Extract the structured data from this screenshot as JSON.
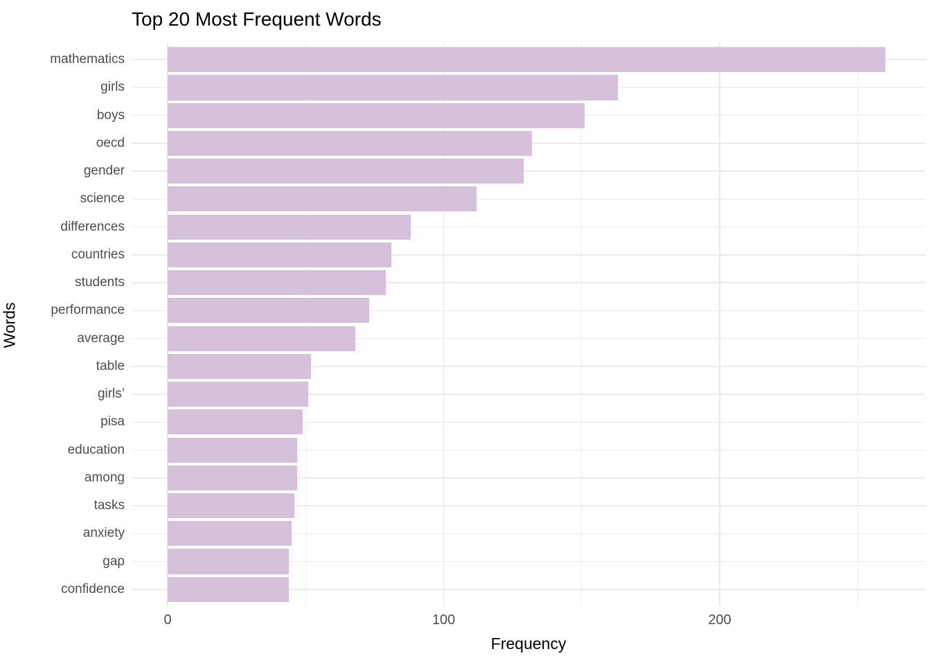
{
  "title": "Top 20 Most Frequent Words",
  "chart_data": {
    "type": "bar",
    "orientation": "horizontal",
    "title": "Top 20 Most Frequent Words",
    "xlabel": "Frequency",
    "ylabel": "Words",
    "categories": [
      "mathematics",
      "girls",
      "boys",
      "oecd",
      "gender",
      "science",
      "differences",
      "countries",
      "students",
      "performance",
      "average",
      "table",
      "girls’",
      "pisa",
      "education",
      "among",
      "tasks",
      "anxiety",
      "gap",
      "confidence"
    ],
    "values": [
      260,
      163,
      151,
      132,
      129,
      112,
      88,
      81,
      79,
      73,
      68,
      52,
      51,
      49,
      47,
      47,
      46,
      45,
      44,
      44
    ],
    "xlim": [
      0,
      274
    ],
    "xticks": [
      0,
      100,
      200
    ],
    "minor_xticks": [
      50,
      150,
      250
    ],
    "grid": true,
    "legend": "none",
    "bar_color": "#d6c1da",
    "major_grid_color": "#e7e7e7",
    "minor_grid_color": "#ededed",
    "row_grid_color": "#ebebeb",
    "axis_text_color": "#4d4d4d",
    "title_color": "#000000"
  }
}
